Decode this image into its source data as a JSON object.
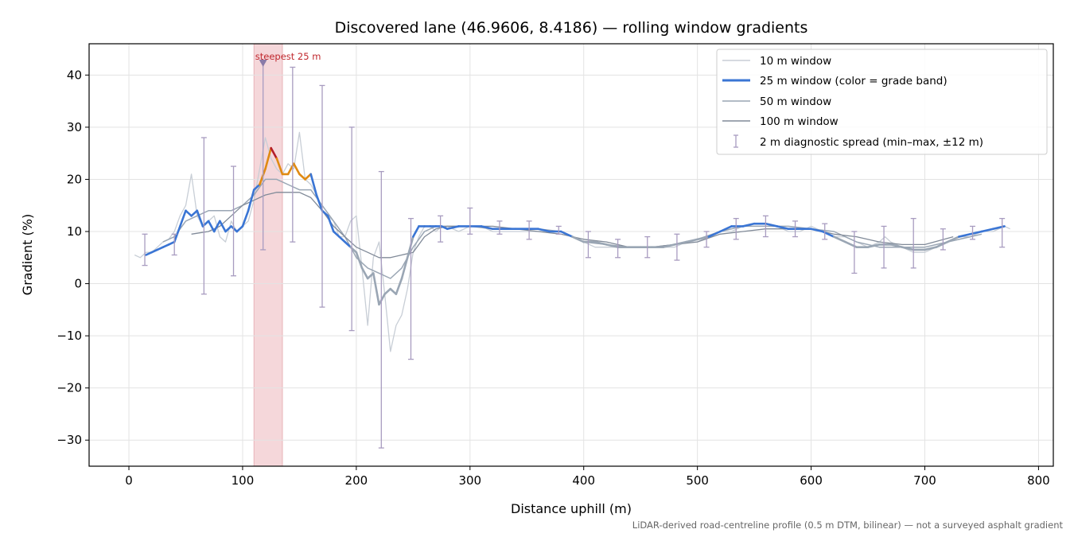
{
  "chart_data": {
    "type": "line",
    "title": "Discovered lane (46.9606, 8.4186) — rolling window gradients",
    "xlabel": "Distance uphill (m)",
    "ylabel": "Gradient (%)",
    "xlim": [
      -35,
      813
    ],
    "ylim": [
      -35,
      46
    ],
    "xticks": [
      0,
      100,
      200,
      300,
      400,
      500,
      600,
      700,
      800
    ],
    "yticks": [
      -30,
      -20,
      -10,
      0,
      10,
      20,
      30,
      40
    ],
    "ytick_labels": [
      "−30",
      "−20",
      "−10",
      "0",
      "10",
      "20",
      "30",
      "40"
    ],
    "grid": true,
    "legend_position": "top-right",
    "footnote": "LiDAR-derived road-centreline profile (0.5 m DTM, bilinear) — not a surveyed asphalt gradient",
    "highlight": {
      "x_start": 110,
      "x_end": 135,
      "label": "steepest 25 m",
      "marker_x": 118,
      "marker_y": 42.5
    },
    "grade_colors": {
      "low": "#3a75d4",
      "mid": "#e08a12",
      "high": "#b41d2a"
    },
    "series": [
      {
        "name": "10 m window",
        "color": "#c8ced6",
        "x": [
          5,
          10,
          15,
          20,
          25,
          30,
          35,
          40,
          45,
          50,
          55,
          60,
          65,
          70,
          75,
          80,
          85,
          90,
          95,
          100,
          105,
          110,
          115,
          120,
          125,
          130,
          135,
          140,
          145,
          150,
          155,
          160,
          165,
          170,
          175,
          180,
          185,
          190,
          195,
          200,
          205,
          210,
          215,
          220,
          225,
          230,
          235,
          240,
          245,
          250,
          255,
          260,
          265,
          270,
          275,
          280,
          290,
          300,
          310,
          320,
          330,
          340,
          350,
          360,
          370,
          380,
          390,
          400,
          410,
          420,
          430,
          440,
          450,
          460,
          470,
          480,
          490,
          500,
          510,
          520,
          530,
          540,
          550,
          560,
          570,
          580,
          590,
          600,
          610,
          620,
          630,
          640,
          650,
          660,
          665,
          670,
          680,
          690,
          700,
          710,
          720,
          730,
          740,
          750,
          760,
          770,
          775
        ],
        "y": [
          5.5,
          5,
          6,
          6,
          7,
          8,
          8.5,
          10,
          13,
          15,
          21,
          13,
          11,
          12,
          13,
          9,
          8,
          12,
          10,
          11,
          12,
          16,
          22,
          28,
          24,
          22,
          21,
          23,
          22,
          29,
          20,
          19,
          17,
          14,
          13,
          12,
          9,
          9,
          12,
          13,
          3,
          -8,
          5,
          8,
          -2,
          -13,
          -8,
          -6,
          -1,
          6,
          9,
          11,
          11,
          10,
          11,
          11,
          10,
          11,
          11,
          10,
          10,
          10,
          10,
          10,
          10,
          10,
          9,
          8,
          7,
          7,
          7,
          7,
          7,
          7,
          7,
          7,
          8,
          8,
          9,
          10,
          10,
          11,
          11,
          11,
          11,
          10,
          10,
          11,
          10,
          9,
          9,
          8,
          7,
          8,
          9,
          8,
          7,
          6,
          6,
          7,
          8,
          9,
          9,
          10,
          10,
          11,
          10.5
        ]
      },
      {
        "name": "25 m window (color = grade band)",
        "color": "#3a75d4",
        "x": [
          15,
          20,
          25,
          30,
          35,
          40,
          45,
          50,
          55,
          60,
          65,
          70,
          75,
          80,
          85,
          90,
          95,
          100,
          105,
          110,
          115,
          120,
          125,
          130,
          135,
          140,
          145,
          150,
          155,
          160,
          165,
          170,
          175,
          180,
          185,
          190,
          195,
          200,
          205,
          210,
          215,
          220,
          225,
          230,
          235,
          240,
          245,
          250,
          255,
          260,
          265,
          270,
          275,
          280,
          290,
          300,
          310,
          320,
          330,
          340,
          350,
          360,
          370,
          380,
          390,
          400,
          410,
          420,
          430,
          440,
          450,
          460,
          470,
          480,
          490,
          500,
          510,
          520,
          530,
          540,
          550,
          560,
          570,
          580,
          590,
          600,
          610,
          620,
          630,
          640,
          650,
          660,
          670,
          680,
          690,
          700,
          710,
          720,
          730,
          740,
          750,
          760,
          770
        ],
        "y": [
          5.5,
          6,
          6.5,
          7,
          7.5,
          8,
          11,
          14,
          13,
          14,
          11,
          12,
          10,
          12,
          10,
          11,
          10,
          11,
          14,
          18,
          19,
          22,
          26,
          24,
          21,
          21,
          23,
          21,
          20,
          21,
          17,
          14,
          13,
          10,
          9,
          8,
          7,
          6,
          3,
          1,
          2,
          -4,
          -2,
          -1,
          -2,
          1,
          5,
          9,
          11,
          11,
          11,
          11,
          11,
          10.5,
          11,
          11,
          11,
          10.5,
          10.5,
          10.5,
          10.5,
          10.5,
          10,
          10,
          9,
          8,
          8,
          7.5,
          7,
          7,
          7,
          7,
          7,
          7.5,
          8,
          8.5,
          9,
          10,
          11,
          11,
          11.5,
          11.5,
          11,
          10.5,
          10.5,
          10.5,
          10,
          9,
          8,
          7,
          7,
          7.5,
          7.5,
          7,
          6.5,
          6.5,
          7,
          8,
          9,
          9.5,
          10,
          10.5,
          11
        ]
      },
      {
        "name": "50 m window",
        "color": "#9aa6b4",
        "x": [
          30,
          40,
          50,
          60,
          70,
          80,
          90,
          100,
          110,
          120,
          130,
          140,
          150,
          160,
          170,
          180,
          190,
          200,
          210,
          220,
          230,
          240,
          250,
          260,
          270,
          280,
          300,
          320,
          340,
          360,
          380,
          400,
          420,
          440,
          460,
          480,
          500,
          520,
          540,
          560,
          580,
          600,
          620,
          640,
          660,
          680,
          700,
          720,
          740,
          750
        ],
        "y": [
          8,
          9,
          12,
          13,
          14,
          14,
          14,
          15,
          17,
          20,
          20,
          19,
          18,
          18,
          15,
          12,
          9,
          5,
          3,
          2,
          1,
          3,
          7,
          10,
          11,
          11,
          11,
          10.5,
          10.5,
          10.5,
          10,
          8,
          7.5,
          7,
          7,
          7.5,
          8.5,
          10,
          11,
          11,
          11,
          10.5,
          10,
          8,
          7,
          7,
          7,
          8,
          9,
          9.5
        ]
      },
      {
        "name": "100 m window",
        "color": "#808a98",
        "x": [
          55,
          70,
          80,
          90,
          100,
          110,
          120,
          130,
          140,
          150,
          160,
          170,
          180,
          190,
          200,
          210,
          220,
          230,
          240,
          250,
          260,
          270,
          280,
          300,
          320,
          340,
          360,
          380,
          400,
          420,
          440,
          460,
          480,
          500,
          520,
          540,
          560,
          580,
          600,
          620,
          640,
          660,
          680,
          700,
          725
        ],
        "y": [
          9.5,
          10,
          11,
          13,
          15,
          16,
          17,
          17.5,
          17.5,
          17.5,
          16.5,
          14,
          11,
          9,
          7,
          6,
          5,
          5,
          5.5,
          6,
          9,
          10.5,
          11,
          11,
          11,
          10.5,
          10,
          9.5,
          8.5,
          8,
          7,
          7,
          7.5,
          8,
          9.5,
          10,
          10.5,
          10.5,
          10.5,
          9.5,
          9,
          8,
          7.5,
          7.5,
          9
        ]
      }
    ],
    "error_bars": {
      "name": "2 m diagnostic spread (min–max, ±12 m)",
      "color": "#a89cc0",
      "points": [
        {
          "x": 14,
          "min": 3.5,
          "max": 9.5
        },
        {
          "x": 40,
          "min": 5.5,
          "max": 9.5
        },
        {
          "x": 66,
          "min": -2,
          "max": 28
        },
        {
          "x": 92,
          "min": 1.5,
          "max": 22.5
        },
        {
          "x": 118,
          "min": 6.5,
          "max": 42.5
        },
        {
          "x": 144,
          "min": 8,
          "max": 41.5
        },
        {
          "x": 170,
          "min": -4.5,
          "max": 38
        },
        {
          "x": 196,
          "min": -9,
          "max": 30
        },
        {
          "x": 222,
          "min": -31.5,
          "max": 21.5
        },
        {
          "x": 248,
          "min": -14.5,
          "max": 12.5
        },
        {
          "x": 274,
          "min": 8,
          "max": 13
        },
        {
          "x": 300,
          "min": 9.5,
          "max": 14.5
        },
        {
          "x": 326,
          "min": 9.5,
          "max": 12
        },
        {
          "x": 352,
          "min": 8.5,
          "max": 12
        },
        {
          "x": 378,
          "min": 9.5,
          "max": 11
        },
        {
          "x": 404,
          "min": 5,
          "max": 10
        },
        {
          "x": 430,
          "min": 5,
          "max": 8.5
        },
        {
          "x": 456,
          "min": 5,
          "max": 9
        },
        {
          "x": 482,
          "min": 4.5,
          "max": 9.5
        },
        {
          "x": 508,
          "min": 7,
          "max": 10
        },
        {
          "x": 534,
          "min": 8.5,
          "max": 12.5
        },
        {
          "x": 560,
          "min": 9,
          "max": 13
        },
        {
          "x": 586,
          "min": 9,
          "max": 12
        },
        {
          "x": 612,
          "min": 8.5,
          "max": 11.5
        },
        {
          "x": 638,
          "min": 2,
          "max": 10
        },
        {
          "x": 664,
          "min": 3,
          "max": 11
        },
        {
          "x": 690,
          "min": 3,
          "max": 12.5
        },
        {
          "x": 716,
          "min": 6.5,
          "max": 10.5
        },
        {
          "x": 742,
          "min": 8.5,
          "max": 11
        },
        {
          "x": 768,
          "min": 7,
          "max": 12.5
        }
      ]
    }
  }
}
